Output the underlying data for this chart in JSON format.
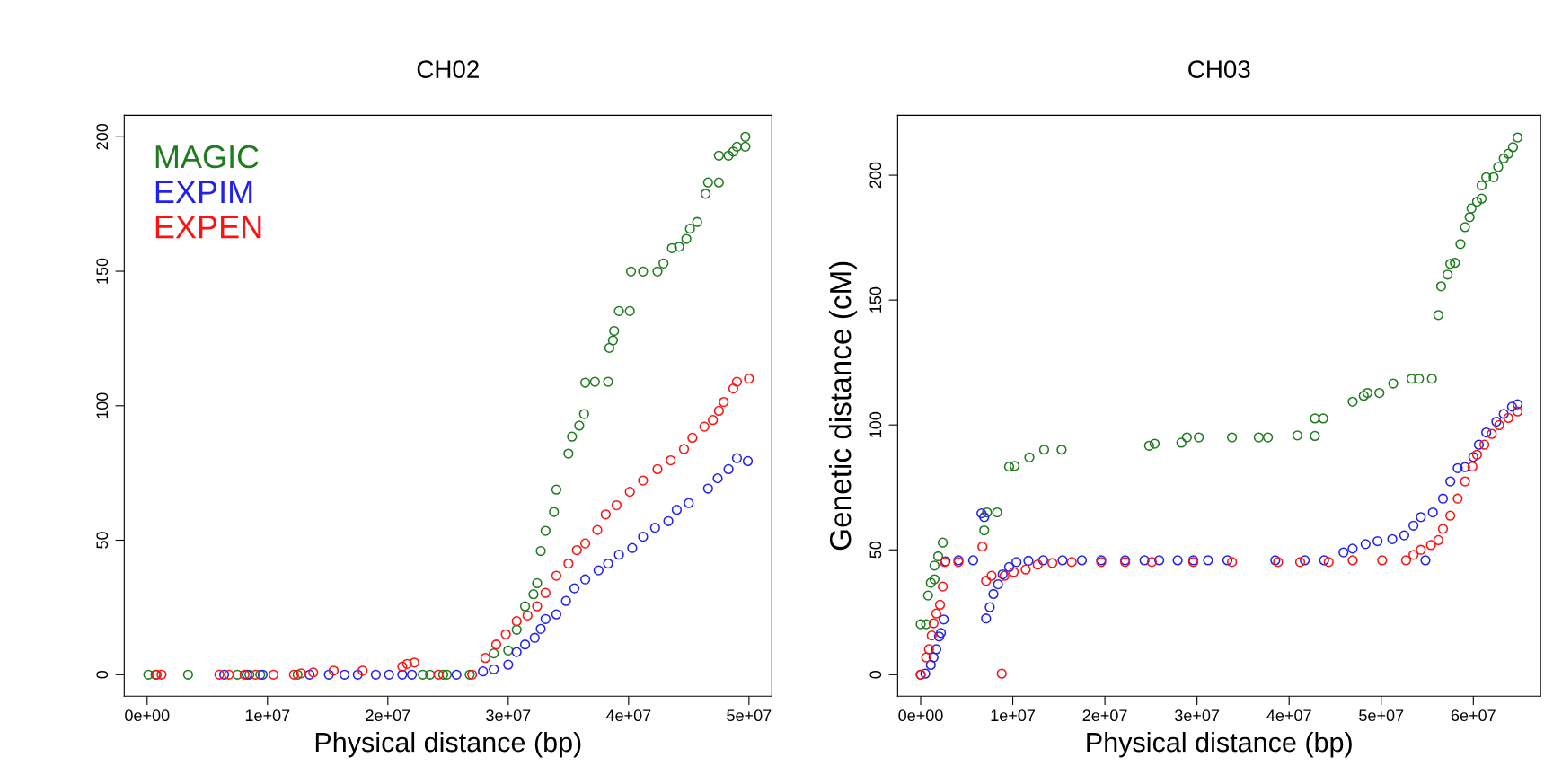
{
  "chart_data": [
    {
      "type": "scatter",
      "title": "CH02",
      "xlabel": "Physical distance (bp)",
      "marker": "circle",
      "legend": "top left",
      "grid": false,
      "xlim": [
        -1900000.0,
        51900000.0
      ],
      "ylim": [
        -8,
        208
      ],
      "xticks": [
        {
          "value": 0,
          "label": "0e+00"
        },
        {
          "value": 10000000.0,
          "label": "1e+07"
        },
        {
          "value": 20000000.0,
          "label": "2e+07"
        },
        {
          "value": 30000000.0,
          "label": "3e+07"
        },
        {
          "value": 40000000.0,
          "label": "4e+07"
        },
        {
          "value": 50000000.0,
          "label": "5e+07"
        }
      ],
      "yticks": [
        0,
        50,
        100,
        150,
        200
      ],
      "series": [
        {
          "name": "MAGIC",
          "color": "#1e7b1e",
          "x": [
            100000.0,
            700000.0,
            3400000.0,
            7500000.0,
            8500000.0,
            9400000.0,
            12500000.0,
            22900000.0,
            23500000.0,
            24600000.0,
            24900000.0,
            26800000.0,
            28800000.0,
            30000000.0,
            30700000.0,
            31400000.0,
            32100000.0,
            32400000.0,
            32700000.0,
            33100000.0,
            33800000.0,
            34000000.0,
            35000000.0,
            35300000.0,
            35900000.0,
            36300000.0,
            36400000.0,
            37200000.0,
            38300000.0,
            38400000.0,
            38700000.0,
            38800000.0,
            39200000.0,
            40100000.0,
            40200000.0,
            41200000.0,
            42400000.0,
            42900000.0,
            43600000.0,
            44200000.0,
            44800000.0,
            45100000.0,
            45700000.0,
            46400000.0,
            46600000.0,
            47500000.0,
            47500000.0,
            48300000.0,
            48700000.0,
            49000000.0,
            49700000.0,
            49700000.0
          ],
          "values": [
            0,
            0,
            0,
            0,
            0,
            0,
            0,
            0,
            0,
            0,
            0,
            0,
            7.9,
            9,
            16.7,
            25.4,
            29.9,
            34,
            46,
            53.5,
            60.5,
            68.8,
            82.2,
            88.5,
            92.6,
            96.9,
            108.6,
            108.9,
            108.9,
            121.5,
            124.3,
            127.8,
            135.2,
            135.2,
            149.9,
            149.9,
            149.9,
            152.9,
            158.6,
            159.1,
            162,
            165.8,
            168.3,
            178.8,
            183,
            183,
            193,
            193,
            194.5,
            196.3,
            196.3,
            200
          ]
        },
        {
          "name": "EXPIM",
          "color": "#2222ee",
          "x": [
            6400000.0,
            8300000.0,
            9600000.0,
            13500000.0,
            15100000.0,
            16400000.0,
            17500000.0,
            19000000.0,
            20100000.0,
            21200000.0,
            22000000.0,
            25700000.0,
            27900000.0,
            28800000.0,
            30000000.0,
            30700000.0,
            31400000.0,
            32200000.0,
            32700000.0,
            33100000.0,
            34000000.0,
            34800000.0,
            35500000.0,
            36400000.0,
            37500000.0,
            38300000.0,
            39200000.0,
            40300000.0,
            41200000.0,
            42200000.0,
            43300000.0,
            44000000.0,
            45000000.0,
            46600000.0,
            47400000.0,
            48300000.0,
            49000000.0,
            49900000.0
          ],
          "values": [
            0,
            0,
            0,
            0,
            0,
            0,
            0,
            0,
            0,
            0,
            0,
            0,
            1.2,
            2,
            3.7,
            8.4,
            11.2,
            13.7,
            17,
            20.7,
            22.4,
            27.4,
            32.1,
            35.4,
            38.8,
            41.3,
            44.6,
            47.1,
            51.3,
            54.6,
            57.1,
            61.3,
            63.8,
            69.2,
            73,
            76.4,
            80.5,
            79.4
          ]
        },
        {
          "name": "EXPEN",
          "color": "#ff1111",
          "x": [
            800000.0,
            1200000.0,
            6000000.0,
            6800000.0,
            8100000.0,
            9000000.0,
            10500000.0,
            12200000.0,
            12800000.0,
            13800000.0,
            15500000.0,
            17900000.0,
            21200000.0,
            21600000.0,
            22200000.0,
            24200000.0,
            27000000.0,
            28100000.0,
            29000000.0,
            29800000.0,
            30700000.0,
            31600000.0,
            32400000.0,
            33100000.0,
            34000000.0,
            35000000.0,
            35700000.0,
            36400000.0,
            37400000.0,
            38100000.0,
            39000000.0,
            40100000.0,
            41200000.0,
            42400000.0,
            43500000.0,
            44600000.0,
            45300000.0,
            46300000.0,
            47000000.0,
            47500000.0,
            47900000.0,
            48700000.0,
            49000000.0,
            50000000.0
          ],
          "values": [
            0,
            0,
            0,
            0,
            0,
            0,
            0,
            0,
            0.5,
            0.8,
            1.5,
            1.5,
            3,
            4,
            4.5,
            0,
            0,
            6.2,
            11.2,
            15,
            19.9,
            22,
            25.4,
            30.4,
            36.8,
            41.3,
            46.3,
            48.8,
            53.8,
            59.6,
            63,
            68,
            72.2,
            76.4,
            79.7,
            83.9,
            88.1,
            92.2,
            94.7,
            98.1,
            101.4,
            106.4,
            108.9,
            110.1
          ]
        }
      ]
    },
    {
      "type": "scatter",
      "title": "CH03",
      "xlabel": "Physical distance (bp)",
      "ylabel": "Genetic distance (cM)",
      "marker": "circle",
      "legend": false,
      "grid": false,
      "xlim": [
        -2500000.0,
        67300000.0
      ],
      "ylim": [
        -8.6,
        224
      ],
      "xticks": [
        {
          "value": 0,
          "label": "0e+00"
        },
        {
          "value": 10000000.0,
          "label": "1e+07"
        },
        {
          "value": 20000000.0,
          "label": "2e+07"
        },
        {
          "value": 30000000.0,
          "label": "3e+07"
        },
        {
          "value": 40000000.0,
          "label": "4e+07"
        },
        {
          "value": 50000000.0,
          "label": "5e+07"
        },
        {
          "value": 60000000.0,
          "label": "6e+07"
        }
      ],
      "yticks": [
        0,
        50,
        100,
        150,
        200
      ],
      "series": [
        {
          "color": "#1e7b1e",
          "x": [
            0,
            600000.0,
            800000.0,
            1100000.0,
            1500000.0,
            1500000.0,
            1900000.0,
            2400000.0,
            6900000.0,
            7200000.0,
            8300000.0,
            9600000.0,
            10200000.0,
            11800000.0,
            13400000.0,
            15300000.0,
            24800000.0,
            25400000.0,
            28300000.0,
            28900000.0,
            30200000.0,
            33800000.0,
            36700000.0,
            37700000.0,
            40900000.0,
            42800000.0,
            42800000.0,
            43700000.0,
            46900000.0,
            48100000.0,
            48500000.0,
            49800000.0,
            51300000.0,
            53300000.0,
            54100000.0,
            55500000.0,
            56200000.0,
            56500000.0,
            57200000.0,
            57500000.0,
            58000000.0,
            58600000.0,
            59100000.0,
            59600000.0,
            59800000.0,
            60400000.0,
            60900000.0,
            60900000.0,
            61400000.0,
            62200000.0,
            62700000.0,
            63300000.0,
            63800000.0,
            64300000.0,
            64800000.0
          ],
          "values": [
            20.2,
            20.2,
            31.7,
            36.8,
            38.2,
            43.7,
            47.4,
            52.9,
            57.8,
            65,
            65,
            83.3,
            83.6,
            87,
            90.1,
            90.1,
            91.7,
            92.5,
            92.9,
            95,
            95,
            95,
            95,
            95,
            95.8,
            95.6,
            102.6,
            102.6,
            109.3,
            111.7,
            112.8,
            112.8,
            116.6,
            118.5,
            118.5,
            118.5,
            144,
            155.5,
            160.2,
            164.5,
            164.9,
            172.4,
            179.2,
            183.2,
            186.7,
            189.4,
            190.6,
            195.9,
            199.2,
            199.2,
            203.3,
            206.7,
            208.6,
            211.2,
            215.1
          ]
        },
        {
          "color": "#2222ee",
          "x": [
            0,
            500000.0,
            1100000.0,
            1400000.0,
            1700000.0,
            2000000.0,
            2200000.0,
            2500000.0,
            2700000.0,
            4100000.0,
            5700000.0,
            6600000.0,
            6900000.0,
            7100000.0,
            7500000.0,
            7900000.0,
            8400000.0,
            8900000.0,
            9600000.0,
            10400000.0,
            11700000.0,
            13300000.0,
            15400000.0,
            17500000.0,
            19600000.0,
            22200000.0,
            24300000.0,
            25900000.0,
            27900000.0,
            29600000.0,
            31200000.0,
            33300000.0,
            38500000.0,
            41700000.0,
            43800000.0,
            45900000.0,
            46900000.0,
            48300000.0,
            49600000.0,
            51200000.0,
            52500000.0,
            53500000.0,
            54300000.0,
            54800000.0,
            55600000.0,
            56700000.0,
            57500000.0,
            58300000.0,
            59100000.0,
            60000000.0,
            60600000.0,
            61400000.0,
            62500000.0,
            63300000.0,
            64200000.0,
            64800000.0
          ],
          "values": [
            0,
            0.4,
            3.9,
            6.9,
            10.2,
            15.3,
            16.7,
            22.1,
            45.4,
            45.8,
            45.8,
            64.6,
            63.1,
            22.5,
            27,
            32.3,
            36.2,
            40.2,
            43.1,
            45.1,
            45.6,
            45.8,
            45.8,
            45.8,
            45.8,
            45.8,
            45.8,
            45.8,
            45.8,
            45.8,
            45.8,
            45.8,
            45.8,
            45.8,
            45.8,
            49,
            50.5,
            52.3,
            53.5,
            54.3,
            55.8,
            59.7,
            63.1,
            45.8,
            65,
            70.5,
            77.4,
            82.7,
            83.1,
            87.2,
            92.1,
            97,
            101.3,
            104.4,
            107.3,
            108.3
          ]
        },
        {
          "color": "#ff1111",
          "x": [
            0,
            600000.0,
            900000.0,
            1200000.0,
            1400000.0,
            1700000.0,
            2100000.0,
            2400000.0,
            2600000.0,
            4100000.0,
            6700000.0,
            7100000.0,
            7700000.0,
            8800000.0,
            9100000.0,
            10100000.0,
            11400000.0,
            12700000.0,
            14300000.0,
            16400000.0,
            19600000.0,
            22200000.0,
            25100000.0,
            29600000.0,
            33800000.0,
            38800000.0,
            41200000.0,
            44300000.0,
            46900000.0,
            50100000.0,
            52700000.0,
            53500000.0,
            54300000.0,
            55400000.0,
            56200000.0,
            56700000.0,
            57500000.0,
            58300000.0,
            59100000.0,
            59900000.0,
            60400000.0,
            61200000.0,
            62000000.0,
            62800000.0,
            63800000.0,
            64800000.0
          ],
          "values": [
            0,
            6.9,
            10.2,
            15.7,
            20.6,
            24.5,
            28,
            35.3,
            45.1,
            45.1,
            51.3,
            37.6,
            39.6,
            0.4,
            39.6,
            41.1,
            42.1,
            44.1,
            44.7,
            45.1,
            45.1,
            45.1,
            45.1,
            45.1,
            45.1,
            45.1,
            45.1,
            45.1,
            45.8,
            45.8,
            45.8,
            48,
            50,
            51.9,
            53.9,
            58.4,
            63.7,
            70.5,
            77.4,
            83.3,
            88.1,
            92.1,
            96.4,
            99.9,
            102.8,
            105.4
          ]
        }
      ]
    }
  ]
}
